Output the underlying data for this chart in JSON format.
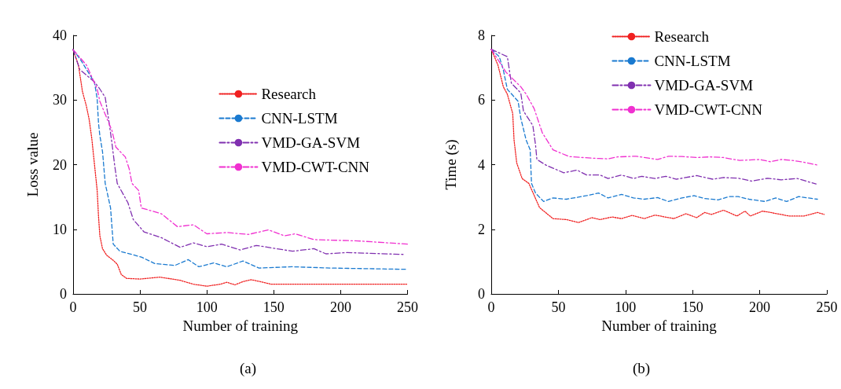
{
  "chart_data": [
    {
      "type": "line",
      "title": "(a)",
      "xlabel": "Number of training",
      "ylabel": "Loss value",
      "xlim": [
        0,
        250
      ],
      "xticks": [
        0,
        50,
        100,
        150,
        200,
        250
      ],
      "ylim": [
        0,
        40
      ],
      "yticks": [
        0,
        10,
        20,
        30,
        40
      ],
      "grid": false,
      "legend": "top right",
      "marker": "none",
      "series": [
        {
          "name": "Research",
          "color": "#f02020",
          "line_style": "dotted",
          "x": [
            0,
            4,
            7,
            10,
            12,
            14,
            16,
            18,
            19,
            20,
            22,
            25,
            30,
            33,
            36,
            40,
            50,
            65,
            80,
            90,
            100,
            110,
            115,
            121,
            127,
            133,
            140,
            148,
            160,
            200,
            250
          ],
          "values": [
            37.8,
            35.4,
            31.3,
            29,
            27,
            24,
            20,
            16,
            12,
            9,
            7,
            6,
            5.2,
            4.6,
            3,
            2.4,
            2.3,
            2.6,
            2.1,
            1.5,
            1.2,
            1.5,
            1.8,
            1.4,
            1.9,
            2.2,
            1.9,
            1.5,
            1.5,
            1.5,
            1.5
          ]
        },
        {
          "name": "CNN-LSTM",
          "color": "#1a7ad0",
          "line_style": "dashed",
          "x": [
            0,
            6,
            16,
            18,
            19,
            20,
            22,
            24,
            28,
            30,
            35,
            51,
            61,
            76,
            86,
            94,
            105,
            115,
            127,
            139,
            164,
            193,
            250
          ],
          "values": [
            37.8,
            36.1,
            32.7,
            30.2,
            26.4,
            24.5,
            22,
            17.1,
            13.3,
            7.7,
            6.6,
            5.7,
            4.7,
            4.4,
            5.3,
            4.2,
            4.8,
            4.2,
            5.1,
            4,
            4.2,
            4,
            3.8
          ]
        },
        {
          "name": "VMD-GA-SVM",
          "color": "#8030b0",
          "line_style": "dashdot",
          "x": [
            0,
            5,
            16,
            20,
            24,
            27,
            29,
            31,
            33,
            41,
            45,
            53,
            66,
            80,
            90,
            100,
            111,
            125,
            137,
            164,
            180,
            189,
            205,
            248
          ],
          "values": [
            37.8,
            34.7,
            32.8,
            31.7,
            30.4,
            26.4,
            23.4,
            20,
            17.1,
            14.1,
            11.5,
            9.6,
            8.7,
            7.2,
            7.9,
            7.3,
            7.7,
            6.8,
            7.5,
            6.6,
            7,
            6.2,
            6.4,
            6.1
          ]
        },
        {
          "name": "VMD-CWT-CNN",
          "color": "#f030d0",
          "line_style": "dashdot",
          "x": [
            0,
            10,
            18,
            20,
            23,
            29,
            32,
            39,
            42,
            44,
            49,
            51,
            66,
            78,
            90,
            100,
            115,
            131,
            146,
            158,
            166,
            180,
            197,
            213,
            250
          ],
          "values": [
            37.8,
            35.4,
            31.7,
            29.8,
            28.3,
            25.3,
            22.7,
            21.2,
            19.3,
            17.1,
            16,
            13.3,
            12.4,
            10.4,
            10.7,
            9.3,
            9.5,
            9.2,
            9.9,
            9,
            9.3,
            8.4,
            8.3,
            8.2,
            7.7
          ]
        }
      ]
    },
    {
      "type": "line",
      "title": "(b)",
      "xlabel": "Number of training",
      "ylabel": "Time (s)",
      "xlim": [
        0,
        250
      ],
      "xticks": [
        0,
        50,
        100,
        150,
        200,
        250
      ],
      "ylim": [
        0,
        8
      ],
      "yticks": [
        0,
        2,
        4,
        6,
        8
      ],
      "grid": false,
      "legend": "top right",
      "marker": "none",
      "series": [
        {
          "name": "Research",
          "color": "#f02020",
          "line_style": "dotted",
          "x": [
            0,
            5,
            9,
            12,
            16,
            17,
            19,
            23,
            28,
            36,
            46,
            56,
            65,
            75,
            81,
            90,
            97,
            105,
            114,
            122,
            136,
            145,
            153,
            159,
            164,
            173,
            177,
            183,
            189,
            193,
            202,
            208,
            222,
            233,
            243,
            248
          ],
          "values": [
            7.57,
            7.08,
            6.41,
            6.18,
            5.58,
            4.76,
            4.05,
            3.57,
            3.42,
            2.67,
            2.33,
            2.3,
            2.21,
            2.36,
            2.3,
            2.38,
            2.33,
            2.43,
            2.33,
            2.44,
            2.33,
            2.48,
            2.36,
            2.52,
            2.46,
            2.59,
            2.52,
            2.41,
            2.56,
            2.41,
            2.56,
            2.52,
            2.41,
            2.41,
            2.52,
            2.46
          ]
        },
        {
          "name": "CNN-LSTM",
          "color": "#1a7ad0",
          "line_style": "dashed",
          "x": [
            0,
            6,
            9,
            12,
            20,
            22,
            26,
            29,
            30,
            33,
            39,
            46,
            56,
            71,
            80,
            87,
            97,
            106,
            114,
            124,
            132,
            142,
            151,
            159,
            169,
            177,
            184,
            192,
            204,
            212,
            220,
            229,
            243
          ],
          "values": [
            7.57,
            7.34,
            6.93,
            6.33,
            5.96,
            5.44,
            4.76,
            4.46,
            3.42,
            3.12,
            2.86,
            2.97,
            2.93,
            3.04,
            3.12,
            2.97,
            3.08,
            2.97,
            2.93,
            2.98,
            2.86,
            2.97,
            3.04,
            2.95,
            2.91,
            3.01,
            3.01,
            2.93,
            2.86,
            2.97,
            2.86,
            3.01,
            2.93
          ]
        },
        {
          "name": "VMD-GA-SVM",
          "color": "#8030b0",
          "line_style": "dashdot",
          "x": [
            0,
            12,
            15,
            22,
            24,
            31,
            33,
            34,
            41,
            54,
            64,
            71,
            81,
            87,
            97,
            106,
            112,
            122,
            130,
            138,
            153,
            165,
            173,
            184,
            194,
            206,
            216,
            228,
            242
          ],
          "values": [
            7.57,
            7.34,
            6.52,
            6.22,
            5.66,
            5.21,
            4.61,
            4.16,
            3.98,
            3.75,
            3.83,
            3.68,
            3.68,
            3.57,
            3.68,
            3.57,
            3.64,
            3.57,
            3.64,
            3.55,
            3.66,
            3.55,
            3.6,
            3.58,
            3.49,
            3.58,
            3.53,
            3.57,
            3.4
          ]
        },
        {
          "name": "VMD-CWT-CNN",
          "color": "#f030d0",
          "line_style": "dashdot",
          "x": [
            0,
            11,
            22,
            26,
            32,
            38,
            46,
            58,
            75,
            87,
            94,
            108,
            124,
            132,
            142,
            153,
            163,
            173,
            185,
            200,
            208,
            216,
            224,
            231,
            244
          ],
          "values": [
            7.57,
            6.86,
            6.41,
            6.18,
            5.73,
            4.99,
            4.46,
            4.25,
            4.2,
            4.18,
            4.24,
            4.26,
            4.16,
            4.26,
            4.25,
            4.22,
            4.24,
            4.22,
            4.13,
            4.16,
            4.09,
            4.16,
            4.13,
            4.09,
            3.98
          ]
        }
      ]
    }
  ]
}
